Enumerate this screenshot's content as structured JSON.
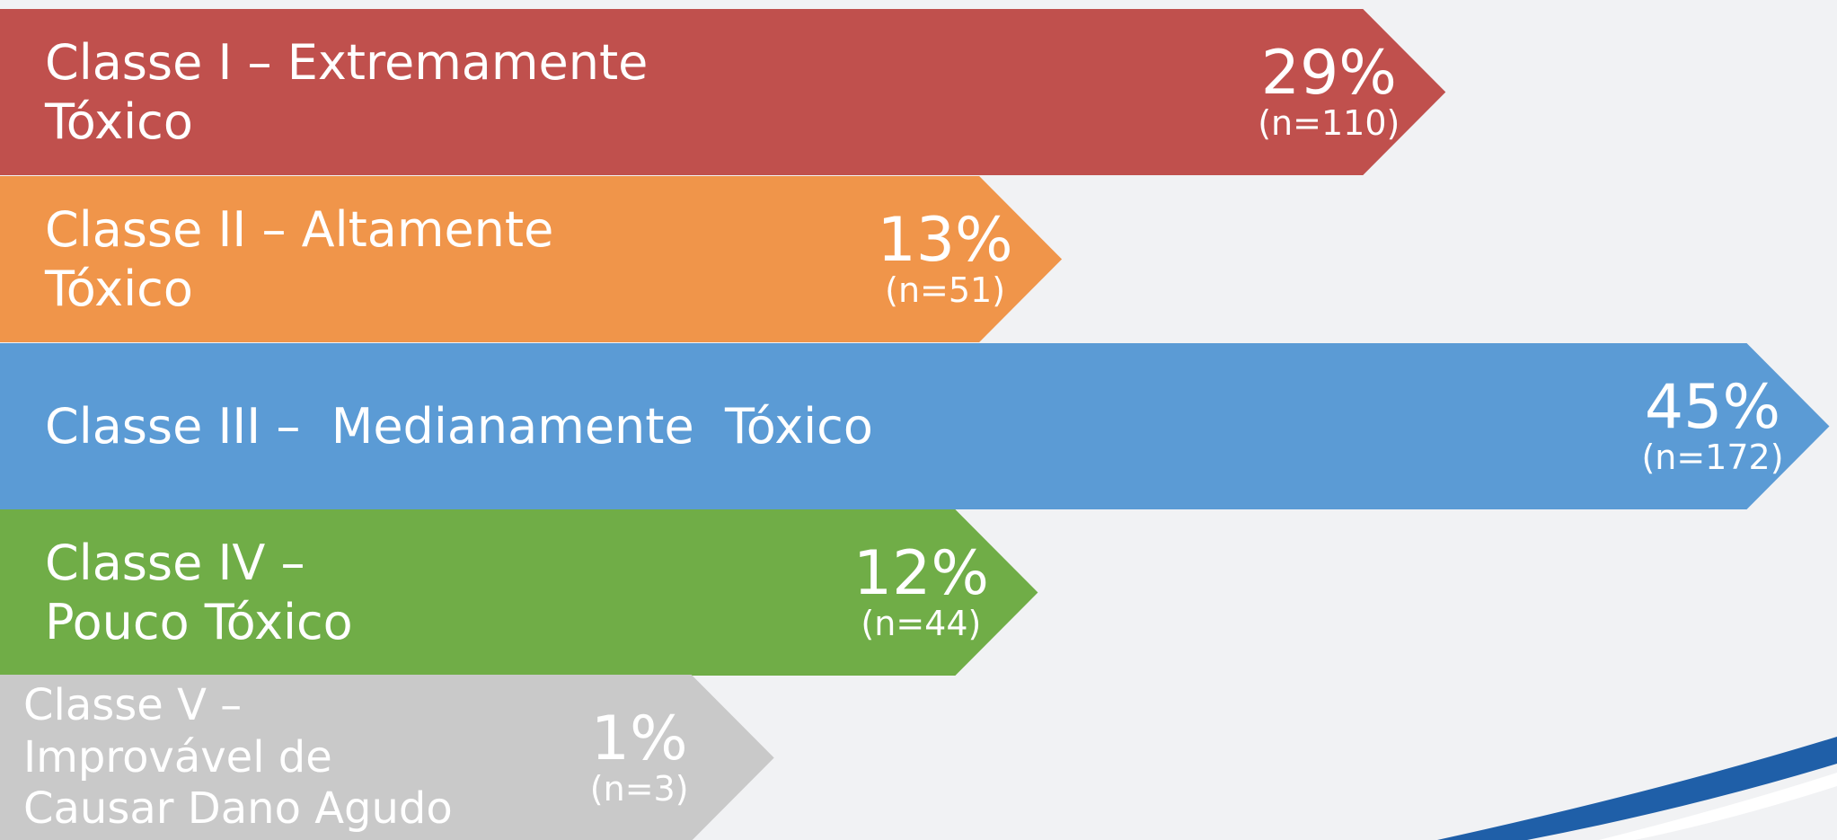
{
  "chart_data": {
    "type": "arrow-bar",
    "categories": [
      "Classe I – Extremamente Tóxico",
      "Classe II – Altamente Tóxico",
      "Classe III –  Medianamente  Tóxico",
      "Classe IV – Pouco Tóxico",
      "Classe V – Improvável de Causar Dano Agudo"
    ],
    "values": [
      29,
      13,
      45,
      12,
      1
    ],
    "value_labels": [
      "29%",
      "13%",
      "45%",
      "12%",
      "1%"
    ],
    "count_labels": [
      "(n=110)",
      "(n=51)",
      "(n=172)",
      "(n=44)",
      "(n=3)"
    ],
    "colors": [
      "#c0504d",
      "#f0954a",
      "#5b9bd5",
      "#70ad47",
      "#c9c9c9"
    ]
  }
}
